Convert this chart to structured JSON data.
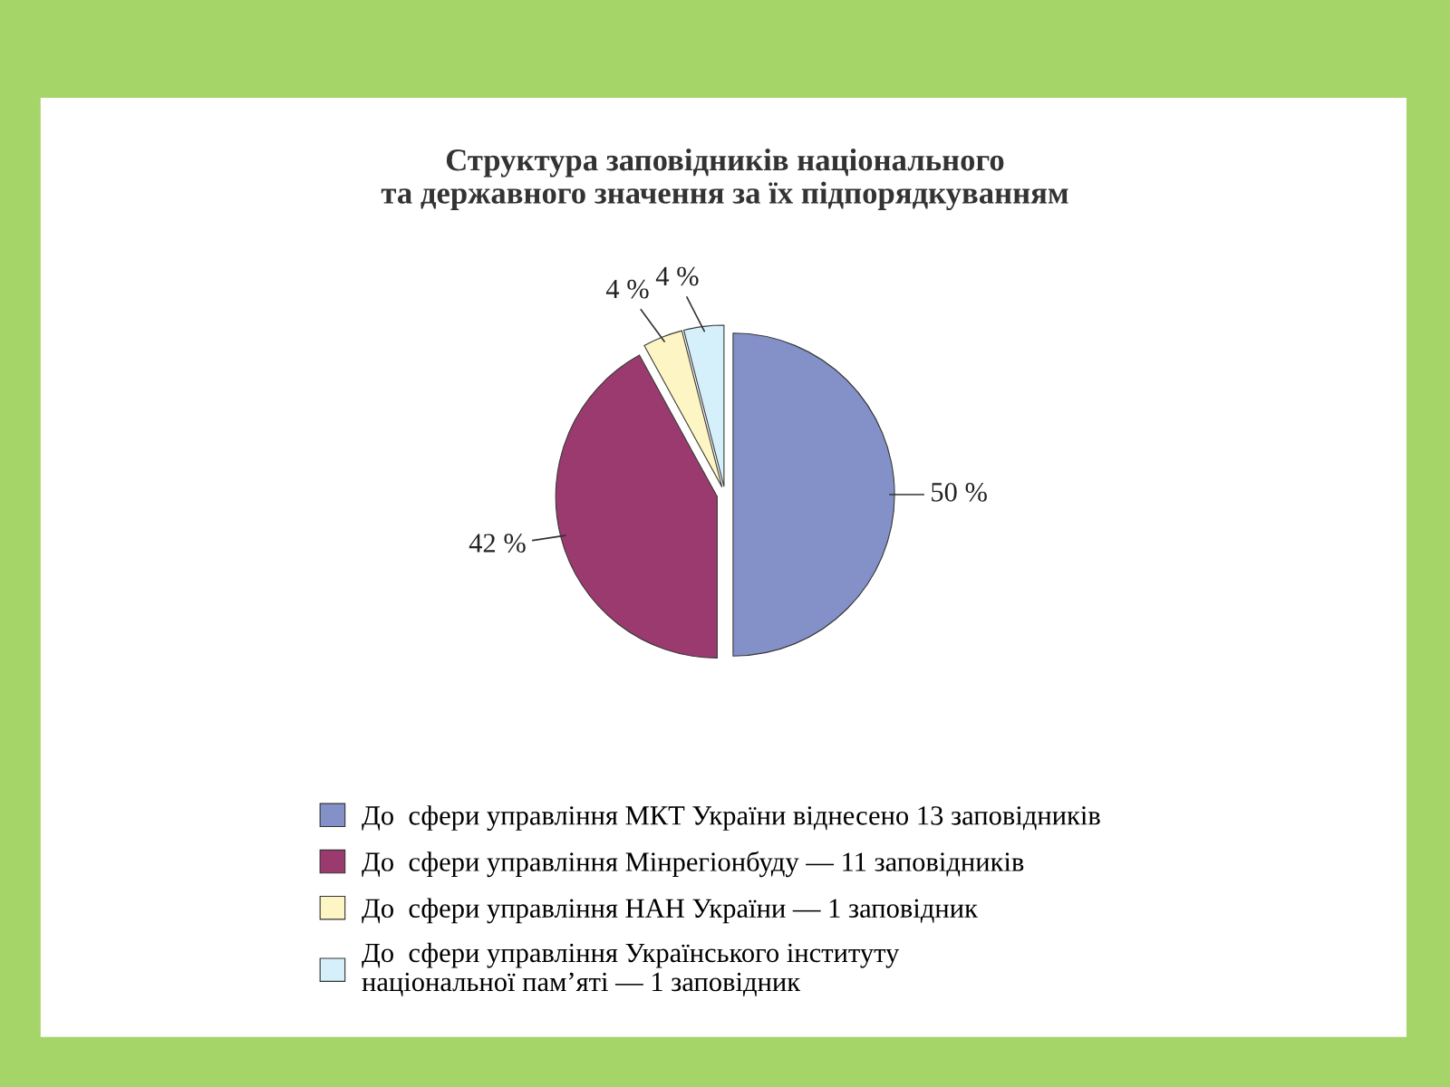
{
  "chart_data": {
    "type": "pie",
    "title": "Структура заповідників національного\nта державного значення за їх підпорядкуванням",
    "categories": [
      "До  сфери управління МКТ України віднесено 13 заповідників",
      "До  сфери управління Мінрегіонбуду — 11 заповідників",
      "До  сфери управління НАН України — 1 заповідник",
      "До  сфери управління Українського інституту\nнаціональної пам’яті — 1 заповідник"
    ],
    "values": [
      50,
      42,
      4,
      4
    ],
    "colors": [
      "#8391c8",
      "#9b3a6e",
      "#fdf5c3",
      "#d6f0fb"
    ],
    "value_labels": [
      "50 %",
      "42 %",
      "4 %",
      "4 %"
    ],
    "legend": "bottom"
  }
}
